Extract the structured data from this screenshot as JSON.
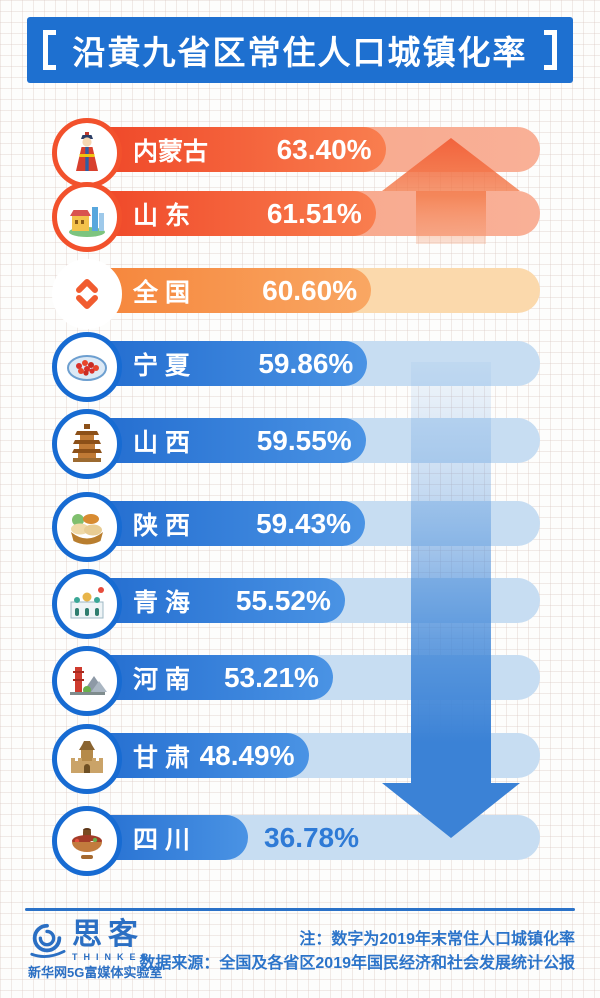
{
  "title": {
    "text": "沿黄九省区常住人口城镇化率"
  },
  "chart_data": {
    "type": "bar",
    "orientation": "horizontal",
    "title": "沿黄九省区常住人口城镇化率",
    "unit": "%",
    "categories": [
      "内蒙古",
      "山东",
      "全国",
      "宁夏",
      "山西",
      "陕西",
      "青海",
      "河南",
      "甘肃",
      "四川"
    ],
    "values": [
      63.4,
      61.51,
      60.6,
      59.86,
      59.55,
      59.43,
      55.52,
      53.21,
      48.49,
      36.78
    ],
    "value_labels": [
      "63.40%",
      "61.51%",
      "60.60%",
      "59.86%",
      "59.55%",
      "59.43%",
      "55.52%",
      "53.21%",
      "48.49%",
      "36.78%"
    ],
    "xlim": [
      0,
      65
    ],
    "grid": false,
    "legend": "none",
    "color_coding": "rows above national rate are red-orange, national row is orange, rows below national rate are blue",
    "annotations": [
      "orange up arrow beside provinces above the national rate",
      "blue down arrow beside provinces below the national rate"
    ]
  },
  "rows": [
    {
      "label": "内蒙古",
      "value": 63.4,
      "value_label": "63.40%",
      "icon": "inner-mongolia-costume-icon",
      "theme": "red"
    },
    {
      "label": "山 东",
      "value": 61.51,
      "value_label": "61.51%",
      "icon": "shandong-landmark-icon",
      "theme": "red"
    },
    {
      "label": "全 国",
      "value": 60.6,
      "value_label": "60.60%",
      "icon": "national-updown-icon",
      "theme": "orange"
    },
    {
      "label": "宁 夏",
      "value": 59.86,
      "value_label": "59.86%",
      "icon": "ningxia-goji-berries-icon",
      "theme": "blue"
    },
    {
      "label": "山 西",
      "value": 59.55,
      "value_label": "59.55%",
      "icon": "shanxi-pagoda-icon",
      "theme": "blue"
    },
    {
      "label": "陕 西",
      "value": 59.43,
      "value_label": "59.43%",
      "icon": "shaanxi-bread-basket-icon",
      "theme": "blue"
    },
    {
      "label": "青 海",
      "value": 55.52,
      "value_label": "55.52%",
      "icon": "qinghai-monastery-icon",
      "theme": "blue"
    },
    {
      "label": "河 南",
      "value": 53.21,
      "value_label": "53.21%",
      "icon": "henan-landmark-icon",
      "theme": "blue"
    },
    {
      "label": "甘 肃",
      "value": 48.49,
      "value_label": "48.49%",
      "icon": "gansu-fortress-icon",
      "theme": "blue"
    },
    {
      "label": "四 川",
      "value": 36.78,
      "value_label": "36.78%",
      "icon": "sichuan-hotpot-icon",
      "theme": "blue"
    }
  ],
  "footer": {
    "note1": "注：数字为2019年末常住人口城镇化率",
    "note2": "数据来源：全国及各省区2019年国民经济和社会发展统计公报",
    "logo_text": "思客",
    "logo_subtext": "THINKER",
    "logo_org": "新华网5G富媒体实验室"
  },
  "colors": {
    "banner_blue": "#1e70d0",
    "red_bar": [
      "#ee4023",
      "#f97e4f"
    ],
    "red_track": "#f7a98d",
    "orange_bar": [
      "#f58136",
      "#f9a763"
    ],
    "orange_track": "#fbd9ac",
    "blue_bar": [
      "#1e68cd",
      "#4a93e4"
    ],
    "blue_track": "#c7ddf2",
    "up_arrow": "#f2653a",
    "down_arrow": "#3b82d6",
    "footer_text": "#2c74c9"
  }
}
